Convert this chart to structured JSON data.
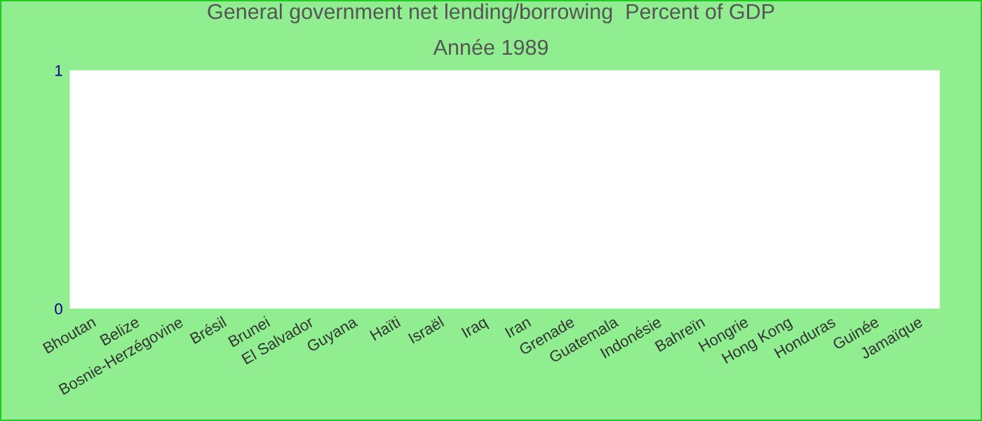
{
  "chart_data": {
    "type": "bar",
    "title": "General government net lending/borrowing  Percent of GDP",
    "subtitle": "Année 1989",
    "categories": [
      "Bhoutan",
      "Belize",
      "Bosnie-Herzégovine",
      "Brésil",
      "Brunei",
      "El Salvador",
      "Guyana",
      "Haïti",
      "Israël",
      "Iraq",
      "Iran",
      "Grenade",
      "Guatemala",
      "Indonésie",
      "Bahreïn",
      "Hongrie",
      "Hong Kong",
      "Honduras",
      "Guinée",
      "Jamaïque"
    ],
    "values": [
      0,
      0,
      0,
      0,
      0,
      0,
      0,
      0,
      0,
      0,
      0,
      0,
      0,
      0,
      0,
      0,
      0,
      0,
      0,
      0
    ],
    "ylim": [
      0,
      1
    ],
    "yticks": [
      0,
      1
    ],
    "grid": false
  }
}
